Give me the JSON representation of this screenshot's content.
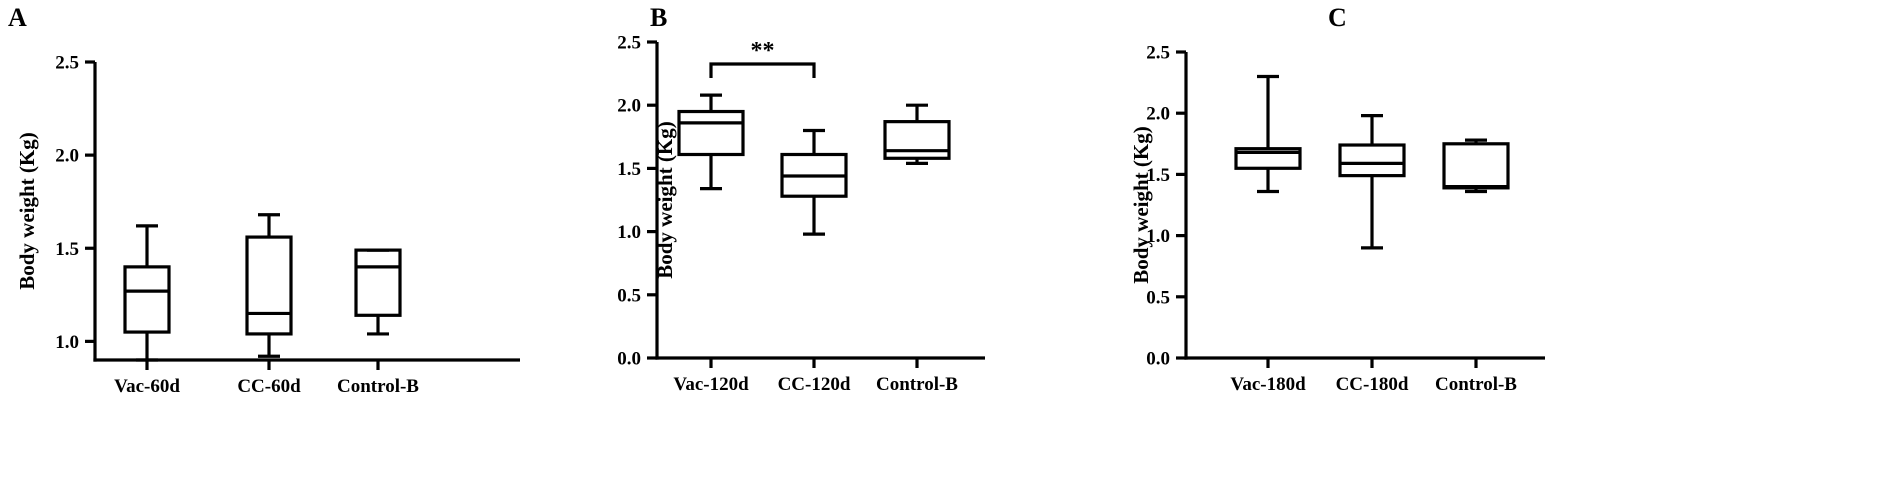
{
  "chart_data": [
    {
      "type": "box",
      "panel_label": "A",
      "ylabel": "Body weight (Kg)",
      "ylim": [
        0.9,
        2.5
      ],
      "yticks": [
        "1.0",
        "1.5",
        "2.0",
        "2.5"
      ],
      "categories": [
        "Vac-60d",
        "CC-60d",
        "Control-B"
      ],
      "boxes": [
        {
          "min": 0.9,
          "q1": 1.05,
          "median": 1.27,
          "q3": 1.4,
          "max": 1.62
        },
        {
          "min": 0.92,
          "q1": 1.04,
          "median": 1.15,
          "q3": 1.56,
          "max": 1.68
        },
        {
          "min": 1.04,
          "q1": 1.14,
          "median": 1.4,
          "q3": 1.49,
          "max": 1.49
        }
      ],
      "significance": []
    },
    {
      "type": "box",
      "panel_label": "B",
      "ylabel": "Body weight (Kg)",
      "ylim": [
        0.0,
        2.5
      ],
      "yticks": [
        "0.0",
        "0.5",
        "1.0",
        "1.5",
        "2.0",
        "2.5"
      ],
      "categories": [
        "Vac-120d",
        "CC-120d",
        "Control-B"
      ],
      "boxes": [
        {
          "min": 1.34,
          "q1": 1.61,
          "median": 1.86,
          "q3": 1.95,
          "max": 2.08
        },
        {
          "min": 0.98,
          "q1": 1.28,
          "median": 1.44,
          "q3": 1.61,
          "max": 1.8
        },
        {
          "min": 1.54,
          "q1": 1.58,
          "median": 1.64,
          "q3": 1.87,
          "max": 2.0
        }
      ],
      "significance": [
        {
          "from": 0,
          "to": 1,
          "label": "**"
        }
      ]
    },
    {
      "type": "box",
      "panel_label": "C",
      "ylabel": "Body weight (Kg)",
      "ylim": [
        0.0,
        2.5
      ],
      "yticks": [
        "0.0",
        "0.5",
        "1.0",
        "1.5",
        "2.0",
        "2.5"
      ],
      "categories": [
        "Vac-180d",
        "CC-180d",
        "Control-B"
      ],
      "boxes": [
        {
          "min": 1.36,
          "q1": 1.55,
          "median": 1.68,
          "q3": 1.71,
          "max": 2.3
        },
        {
          "min": 0.9,
          "q1": 1.49,
          "median": 1.59,
          "q3": 1.74,
          "max": 1.98
        },
        {
          "min": 1.36,
          "q1": 1.39,
          "median": 1.4,
          "q3": 1.75,
          "max": 1.78
        }
      ],
      "significance": []
    }
  ]
}
